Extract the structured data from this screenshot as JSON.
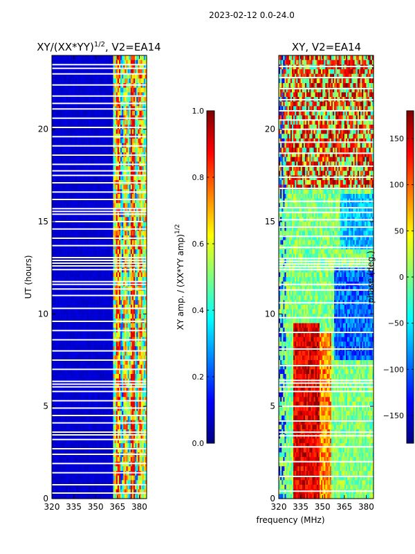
{
  "figure": {
    "suptitle": "2023-02-12 0.0-24.0",
    "xlabel_shared": "frequency (MHz)"
  },
  "colors": {
    "jet": [
      "#00007f",
      "#0000ff",
      "#007fff",
      "#00ffff",
      "#7fff7f",
      "#ffff00",
      "#ff7f00",
      "#ff0000",
      "#7f0000"
    ],
    "gap": "#ffffff"
  },
  "chart_data": [
    {
      "type": "heatmap",
      "title_prefix": "XY/(XX*YY)",
      "title_exponent": "1/2",
      "title_suffix": ", V2=EA14",
      "xlabel": "",
      "ylabel": "UT (hours)",
      "xlim": [
        320,
        385
      ],
      "ylim": [
        0,
        24
      ],
      "xticks": [
        320,
        335,
        350,
        365,
        380
      ],
      "yticks": [
        0,
        5,
        10,
        15,
        20
      ],
      "colorbar": {
        "label_prefix": "XY amp. / (XX*YY amp)",
        "label_exponent": "1/2",
        "range": [
          0.0,
          1.0
        ],
        "ticks": [
          "0.0",
          "0.2",
          "0.4",
          "0.6",
          "0.8",
          "1.0"
        ],
        "tick_values": [
          0.0,
          0.2,
          0.4,
          0.6,
          0.8,
          1.0
        ]
      },
      "description_note": "low amplitude (~0.1) below 362 MHz; high, mixed amplitude (0.3-0.9) in 362-382 MHz channels",
      "low_band": {
        "x_range": [
          320,
          362
        ],
        "value": 0.08
      },
      "high_band": {
        "x_range": [
          362,
          385
        ],
        "value_range": [
          0.3,
          0.9
        ]
      },
      "gaps_hours": [
        0.3,
        0.75,
        1.4,
        1.9,
        2.4,
        2.7,
        3.2,
        3.45,
        3.6,
        4.1,
        4.5,
        4.9,
        5.3,
        5.8,
        6.05,
        6.2,
        6.35,
        7.0,
        7.5,
        8.0,
        8.6,
        9.1,
        9.6,
        10.3,
        11.0,
        11.35,
        11.6,
        11.75,
        12.4,
        12.6,
        12.75,
        12.9,
        13.05,
        13.7,
        14.1,
        14.6,
        15.0,
        15.4,
        15.55,
        15.7,
        16.2,
        16.6,
        17.1,
        17.5,
        17.75,
        18.1,
        18.6,
        19.1,
        19.6,
        20.1,
        20.6,
        21.1,
        21.4,
        21.8,
        22.4,
        23.0,
        23.3,
        23.5
      ]
    },
    {
      "type": "heatmap",
      "title": "XY, V2=EA14",
      "xlabel": "",
      "ylabel": "",
      "xlim": [
        320,
        385
      ],
      "ylim": [
        0,
        24
      ],
      "xticks": [
        320,
        335,
        350,
        365,
        380
      ],
      "yticks": [
        0,
        5,
        10,
        15,
        20
      ],
      "colorbar": {
        "label": "phase (deg.)",
        "range": [
          -180,
          180
        ],
        "ticks": [
          "150",
          "100",
          "50",
          "0",
          "−50",
          "−100",
          "−150"
        ],
        "tick_values": [
          150,
          100,
          50,
          0,
          -50,
          -100,
          -150
        ]
      },
      "description_note": "phase mostly near 0 (green/cyan) with red bands (~+150) near 335-345 MHz at 0-9 h and widely at 17-24 h; blue bands (~-100) 360-380 MHz around 8-12 h",
      "gaps_hours": [
        0.4,
        1.2,
        2.0,
        2.8,
        3.4,
        3.6,
        4.2,
        5.0,
        5.8,
        6.05,
        6.25,
        6.4,
        7.2,
        8.1,
        9.0,
        9.8,
        10.6,
        11.3,
        11.6,
        12.4,
        12.55,
        12.7,
        12.85,
        13.0,
        13.6,
        14.2,
        14.7,
        15.1,
        15.5,
        15.75,
        16.1,
        16.8,
        17.4,
        18.0,
        18.7,
        19.3,
        20.0,
        20.5,
        21.0,
        21.6,
        22.2,
        22.8,
        23.4
      ]
    }
  ]
}
